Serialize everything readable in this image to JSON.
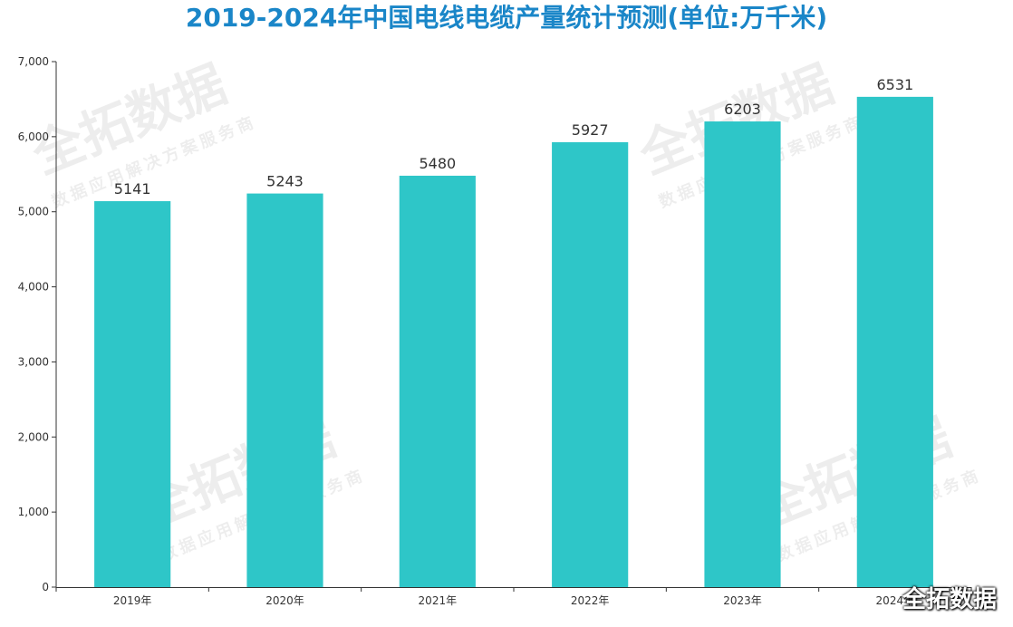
{
  "chart_data": {
    "type": "bar",
    "title": "2019-2024年中国电线电缆产量统计预测(单位:万千米)",
    "categories": [
      "2019年",
      "2020年",
      "2021年",
      "2022年",
      "2023年",
      "2024年"
    ],
    "values": [
      5141,
      5243,
      5480,
      5927,
      6203,
      6531
    ],
    "ylim": [
      0,
      7000
    ],
    "yticks": [
      0,
      1000,
      2000,
      3000,
      4000,
      5000,
      6000,
      7000
    ],
    "ytick_labels": [
      "0",
      "1,000",
      "2,000",
      "3,000",
      "4,000",
      "5,000",
      "6,000",
      "7,000"
    ],
    "xlabel": "",
    "ylabel": "",
    "grid": false,
    "bar_color": "#2ec6c8",
    "title_color": "#1a86c8"
  },
  "watermark": {
    "brand": "全拓数据",
    "tagline": "数据应用解决方案服务商"
  },
  "corner_mark": "全拓数据"
}
